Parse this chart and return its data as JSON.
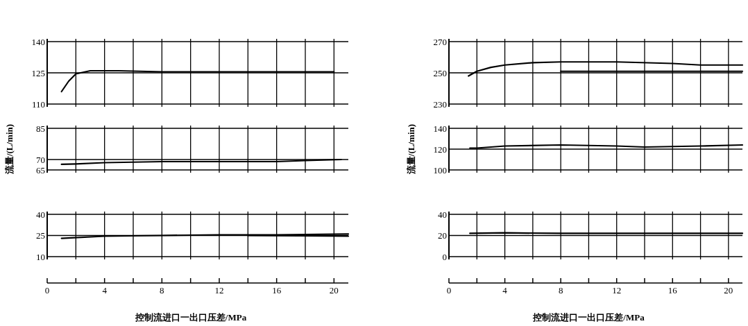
{
  "chart_data": [
    {
      "type": "line",
      "xlim": [
        0,
        21
      ],
      "xticks": [
        0,
        {
          "value": 2,
          "label": null
        },
        4,
        {
          "value": 6,
          "label": null
        },
        8,
        {
          "value": 10,
          "label": null
        },
        12,
        {
          "value": 14,
          "label": null
        },
        16,
        {
          "value": 18,
          "label": null
        },
        20
      ],
      "ylim": [
        110,
        140
      ],
      "yticks": [
        110,
        125,
        140
      ],
      "grid": true,
      "tick_labels": "y",
      "series": [
        {
          "color": "#000000",
          "x": [
            1,
            1.5,
            2,
            3,
            5,
            8,
            12,
            16,
            20
          ],
          "values": [
            116,
            121,
            124.5,
            126,
            126,
            125.5,
            125.5,
            125.5,
            125.5
          ]
        }
      ]
    },
    {
      "type": "line",
      "xlim": [
        0,
        21
      ],
      "xticks": [
        0,
        {
          "value": 2,
          "label": null
        },
        4,
        {
          "value": 6,
          "label": null
        },
        8,
        {
          "value": 10,
          "label": null
        },
        12,
        {
          "value": 14,
          "label": null
        },
        16,
        {
          "value": 18,
          "label": null
        },
        20
      ],
      "ylim": [
        230,
        270
      ],
      "yticks": [
        230,
        250,
        270
      ],
      "grid": true,
      "tick_labels": "y",
      "series": [
        {
          "color": "#000000",
          "x": [
            1.4,
            2,
            3,
            4,
            6,
            8,
            12,
            16,
            18,
            21
          ],
          "values": [
            248,
            251,
            253.5,
            255,
            256.5,
            257,
            257,
            256,
            255,
            255
          ]
        },
        {
          "color": "#000000",
          "x": [
            8,
            12,
            16,
            21
          ],
          "values": [
            251,
            251,
            251,
            251
          ]
        }
      ]
    },
    {
      "type": "line",
      "xlim": [
        0,
        21
      ],
      "xticks": [
        0,
        {
          "value": 2,
          "label": null
        },
        4,
        {
          "value": 6,
          "label": null
        },
        8,
        {
          "value": 10,
          "label": null
        },
        12,
        {
          "value": 14,
          "label": null
        },
        16,
        {
          "value": 18,
          "label": null
        },
        20
      ],
      "ylim": [
        65,
        85
      ],
      "yticks": [
        65,
        70,
        85
      ],
      "grid": true,
      "tick_labels": "y",
      "ylabel": "流量/(L/min)",
      "series": [
        {
          "color": "#000000",
          "x": [
            1,
            2,
            4,
            8,
            12,
            16,
            18,
            20.5
          ],
          "values": [
            67.7,
            67.9,
            68.5,
            69,
            69,
            69,
            69.5,
            70
          ]
        }
      ]
    },
    {
      "type": "line",
      "xlim": [
        0,
        21
      ],
      "xticks": [
        0,
        {
          "value": 2,
          "label": null
        },
        4,
        {
          "value": 6,
          "label": null
        },
        8,
        {
          "value": 10,
          "label": null
        },
        12,
        {
          "value": 14,
          "label": null
        },
        16,
        {
          "value": 18,
          "label": null
        },
        20
      ],
      "ylim": [
        100,
        140
      ],
      "yticks": [
        100,
        120,
        140
      ],
      "grid": true,
      "tick_labels": "y",
      "ylabel": "流量/(L/min)",
      "series": [
        {
          "color": "#000000",
          "x": [
            1.5,
            2,
            4,
            8,
            12,
            14,
            18,
            21
          ],
          "values": [
            121,
            121,
            123,
            124,
            123,
            122,
            123,
            124
          ]
        }
      ]
    },
    {
      "type": "line",
      "xlim": [
        0,
        21
      ],
      "xticks": [
        0,
        {
          "value": 2,
          "label": null
        },
        4,
        {
          "value": 6,
          "label": null
        },
        8,
        {
          "value": 10,
          "label": null
        },
        12,
        {
          "value": 14,
          "label": null
        },
        16,
        {
          "value": 18,
          "label": null
        },
        20
      ],
      "ylim": [
        10,
        40
      ],
      "yticks": [
        10,
        25,
        40
      ],
      "grid": true,
      "xlabel": "控制流进口一出口压差/MPa",
      "series": [
        {
          "color": "#000000",
          "x": [
            1,
            4,
            8,
            12,
            16,
            21
          ],
          "values": [
            23,
            24.5,
            25,
            25.5,
            25.5,
            26
          ]
        },
        {
          "color": "#000000",
          "x": [
            14,
            21
          ],
          "values": [
            25,
            24.5
          ]
        }
      ]
    },
    {
      "type": "line",
      "xlim": [
        0,
        21
      ],
      "xticks": [
        0,
        {
          "value": 2,
          "label": null
        },
        4,
        {
          "value": 6,
          "label": null
        },
        8,
        {
          "value": 10,
          "label": null
        },
        12,
        {
          "value": 14,
          "label": null
        },
        16,
        {
          "value": 18,
          "label": null
        },
        20
      ],
      "ylim": [
        0,
        40
      ],
      "yticks": [
        0,
        20,
        40
      ],
      "grid": true,
      "xlabel": "控制流进口一出口压差/MPa",
      "series": [
        {
          "color": "#000000",
          "x": [
            1.5,
            4,
            8,
            12,
            16,
            21
          ],
          "values": [
            22,
            22.5,
            22,
            22,
            22,
            22
          ]
        }
      ]
    }
  ]
}
